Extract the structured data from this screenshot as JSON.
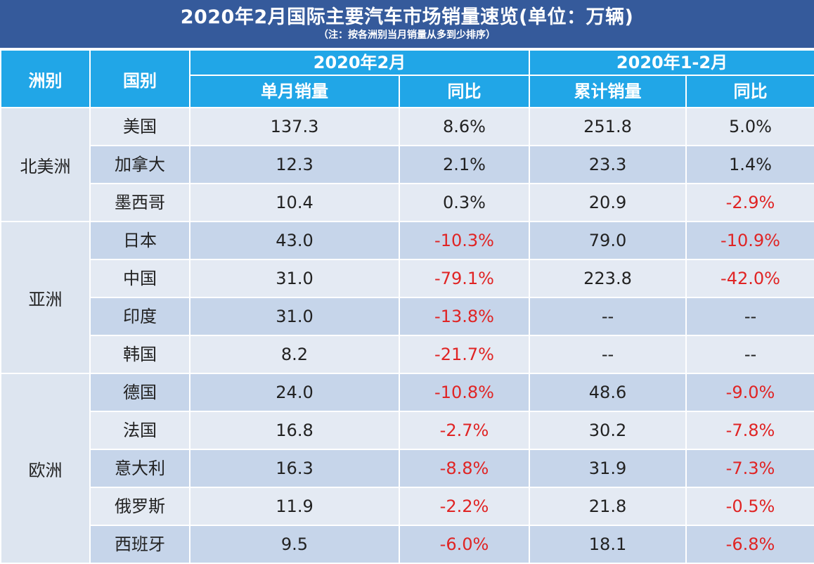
{
  "title": "2020年2月国际主要汽车市场销量速览(单位：万辆)",
  "note": "（注：按各洲别当月销量从多到少排序）",
  "headers": {
    "continent": "洲别",
    "country": "国别",
    "period_month": "2020年2月",
    "period_ytd": "2020年1-2月",
    "monthly_sales": "单月销量",
    "yoy": "同比",
    "cumulative_sales": "累计销量",
    "yoy2": "同比"
  },
  "continents": {
    "north_america": "北美洲",
    "asia": "亚洲",
    "europe": "欧洲"
  },
  "rows": [
    {
      "country": "美国",
      "monthly": "137.3",
      "monthly_yoy": "8.6%",
      "cumulative": "251.8",
      "cumulative_yoy": "5.0%",
      "neg1": false,
      "neg2": false
    },
    {
      "country": "加拿大",
      "monthly": "12.3",
      "monthly_yoy": "2.1%",
      "cumulative": "23.3",
      "cumulative_yoy": "1.4%",
      "neg1": false,
      "neg2": false
    },
    {
      "country": "墨西哥",
      "monthly": "10.4",
      "monthly_yoy": "0.3%",
      "cumulative": "20.9",
      "cumulative_yoy": "-2.9%",
      "neg1": false,
      "neg2": true
    },
    {
      "country": "日本",
      "monthly": "43.0",
      "monthly_yoy": "-10.3%",
      "cumulative": "79.0",
      "cumulative_yoy": "-10.9%",
      "neg1": true,
      "neg2": true
    },
    {
      "country": "中国",
      "monthly": "31.0",
      "monthly_yoy": "-79.1%",
      "cumulative": "223.8",
      "cumulative_yoy": "-42.0%",
      "neg1": true,
      "neg2": true
    },
    {
      "country": "印度",
      "monthly": "31.0",
      "monthly_yoy": "-13.8%",
      "cumulative": "--",
      "cumulative_yoy": "--",
      "neg1": true,
      "neg2": false
    },
    {
      "country": "韩国",
      "monthly": "8.2",
      "monthly_yoy": "-21.7%",
      "cumulative": "--",
      "cumulative_yoy": "--",
      "neg1": true,
      "neg2": false
    },
    {
      "country": "德国",
      "monthly": "24.0",
      "monthly_yoy": "-10.8%",
      "cumulative": "48.6",
      "cumulative_yoy": "-9.0%",
      "neg1": true,
      "neg2": true
    },
    {
      "country": "法国",
      "monthly": "16.8",
      "monthly_yoy": "-2.7%",
      "cumulative": "30.2",
      "cumulative_yoy": "-7.8%",
      "neg1": true,
      "neg2": true
    },
    {
      "country": "意大利",
      "monthly": "16.3",
      "monthly_yoy": "-8.8%",
      "cumulative": "31.9",
      "cumulative_yoy": "-7.3%",
      "neg1": true,
      "neg2": true
    },
    {
      "country": "俄罗斯",
      "monthly": "11.9",
      "monthly_yoy": "-2.2%",
      "cumulative": "21.8",
      "cumulative_yoy": "-0.5%",
      "neg1": true,
      "neg2": true
    },
    {
      "country": "西班牙",
      "monthly": "9.5",
      "monthly_yoy": "-6.0%",
      "cumulative": "18.1",
      "cumulative_yoy": "-6.8%",
      "neg1": true,
      "neg2": true
    }
  ]
}
